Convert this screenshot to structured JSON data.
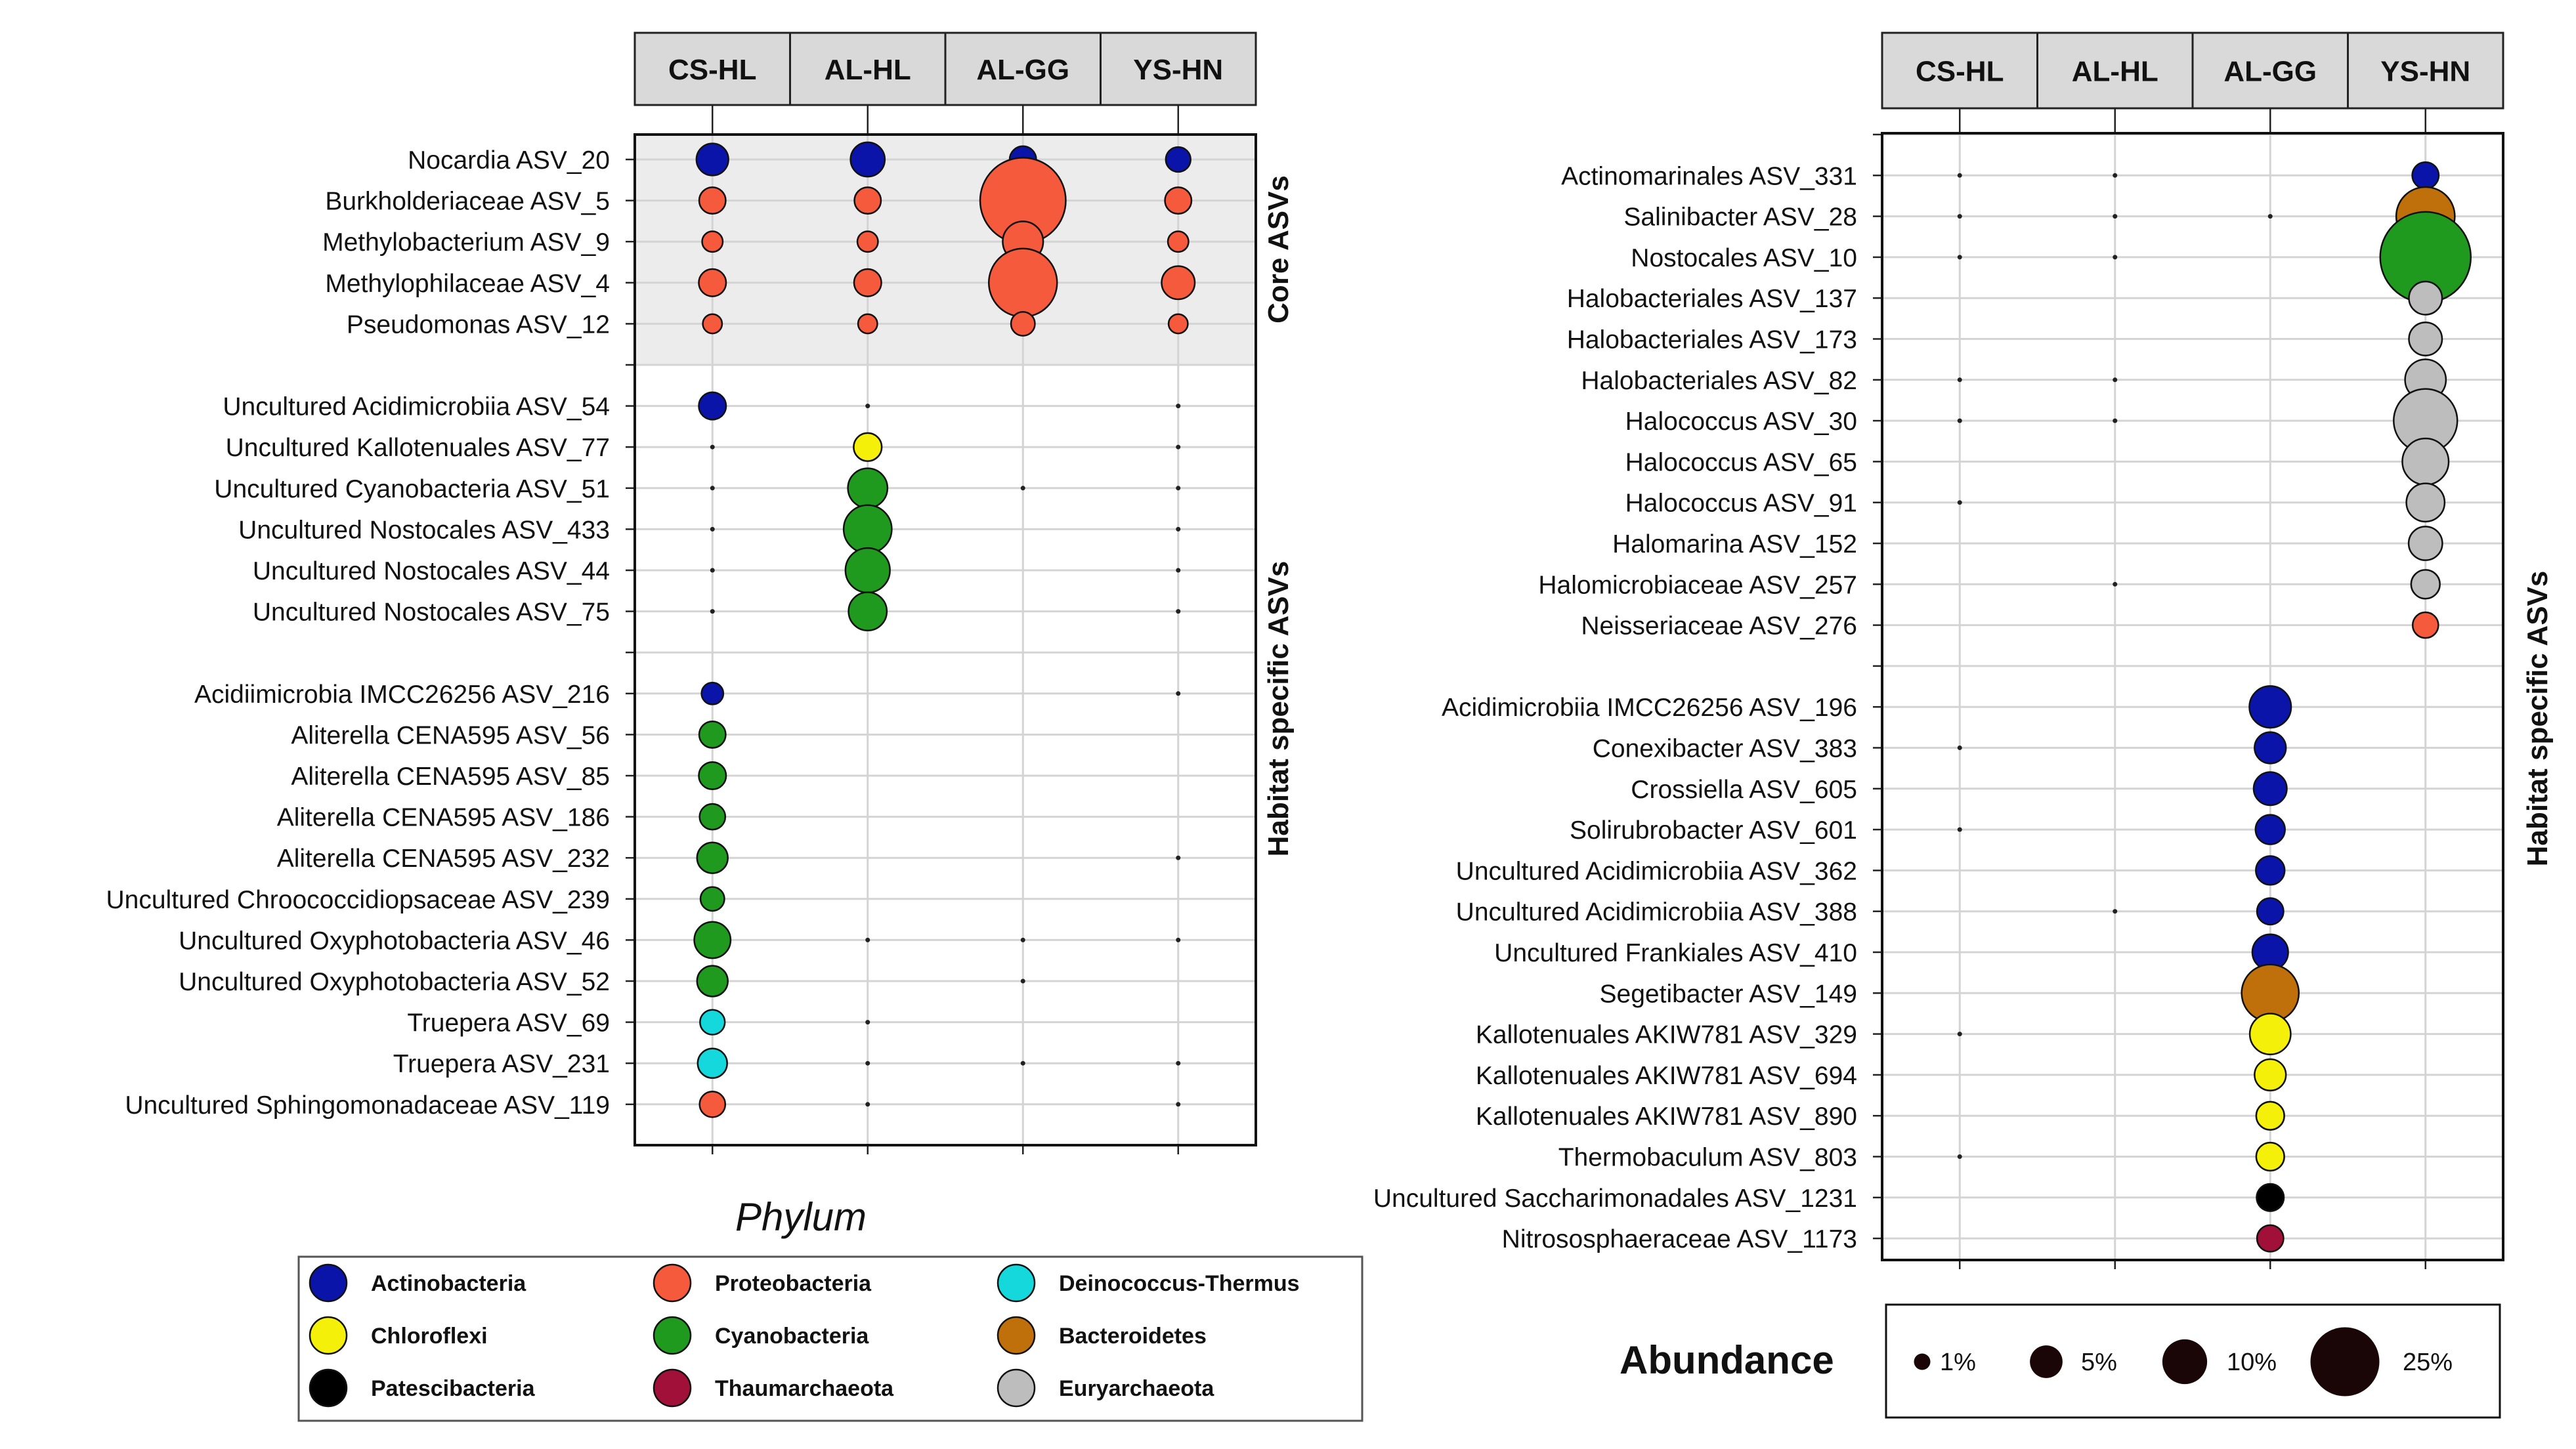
{
  "chart_data": [
    {
      "type": "scatter",
      "subtype": "bubble",
      "title": "",
      "columns": [
        "CS-HL",
        "AL-HL",
        "AL-GG",
        "YS-HN"
      ],
      "group_labels": [
        "Core ASVs",
        "Habitat specific ASVs"
      ],
      "rows": [
        {
          "label": "Nocardia ASV_20",
          "phylum": "Actinobacteria",
          "values": [
            1.8,
            2.2,
            1.0,
            0.8
          ],
          "group": "core"
        },
        {
          "label": "Burkholderiaceae ASV_5",
          "phylum": "Proteobacteria",
          "values": [
            1.0,
            1.0,
            22.0,
            1.0
          ],
          "group": "core"
        },
        {
          "label": "Methylobacterium ASV_9",
          "phylum": "Proteobacteria",
          "values": [
            0.4,
            0.4,
            3.5,
            0.4
          ],
          "group": "core"
        },
        {
          "label": "Methylophilaceae ASV_4",
          "phylum": "Proteobacteria",
          "values": [
            1.1,
            1.1,
            13.0,
            2.0
          ],
          "group": "core"
        },
        {
          "label": "Pseudomonas ASV_12",
          "phylum": "Proteobacteria",
          "values": [
            0.3,
            0.3,
            0.7,
            0.3
          ],
          "group": "core"
        },
        {
          "label": "",
          "phylum": null,
          "values": [
            0,
            0,
            0,
            0
          ],
          "group": "core"
        },
        {
          "label": "Uncultured Acidimicrobiia ASV_54",
          "phylum": "Actinobacteria",
          "values": [
            1.1,
            0.1,
            0,
            0.05
          ],
          "group": "habitat"
        },
        {
          "label": "Uncultured Kallotenuales ASV_77",
          "phylum": "Chloroflexi",
          "values": [
            0.05,
            1.2,
            0,
            0.05
          ],
          "group": "habitat"
        },
        {
          "label": "Uncultured Cyanobacteria ASV_51",
          "phylum": "Cyanobacteria",
          "values": [
            0.1,
            3.3,
            0.05,
            0.1
          ],
          "group": "habitat"
        },
        {
          "label": "Uncultured Nostocales ASV_433",
          "phylum": "Cyanobacteria",
          "values": [
            0.1,
            5.5,
            0,
            0.1
          ],
          "group": "habitat"
        },
        {
          "label": "Uncultured Nostocales ASV_44",
          "phylum": "Cyanobacteria",
          "values": [
            0.05,
            4.5,
            0,
            0.05
          ],
          "group": "habitat"
        },
        {
          "label": "Uncultured Nostocales ASV_75",
          "phylum": "Cyanobacteria",
          "values": [
            0.05,
            3.0,
            0,
            0.05
          ],
          "group": "habitat"
        },
        {
          "label": "",
          "phylum": null,
          "values": [
            0,
            0,
            0,
            0
          ],
          "group": "habitat"
        },
        {
          "label": "Acidiimicrobia IMCC26256 ASV_216",
          "phylum": "Actinobacteria",
          "values": [
            0.5,
            0,
            0,
            0.05
          ],
          "group": "habitat"
        },
        {
          "label": "Aliterella CENA595 ASV_56",
          "phylum": "Cyanobacteria",
          "values": [
            1.0,
            0,
            0,
            0
          ],
          "group": "habitat"
        },
        {
          "label": "Aliterella CENA595  ASV_85",
          "phylum": "Cyanobacteria",
          "values": [
            1.1,
            0,
            0,
            0
          ],
          "group": "habitat"
        },
        {
          "label": "Aliterella CENA595 ASV_186",
          "phylum": "Cyanobacteria",
          "values": [
            0.9,
            0,
            0,
            0
          ],
          "group": "habitat"
        },
        {
          "label": "Aliterella CENA595 ASV_232",
          "phylum": "Cyanobacteria",
          "values": [
            1.6,
            0,
            0,
            0.05
          ],
          "group": "habitat"
        },
        {
          "label": "Uncultured Chroococcidiopsaceae ASV_239",
          "phylum": "Cyanobacteria",
          "values": [
            0.7,
            0,
            0,
            0
          ],
          "group": "habitat"
        },
        {
          "label": "Uncultured Oxyphotobacteria ASV_46",
          "phylum": "Cyanobacteria",
          "values": [
            2.6,
            0.05,
            0.05,
            0.05
          ],
          "group": "habitat"
        },
        {
          "label": "Uncultured Oxyphotobacteria ASV_52",
          "phylum": "Cyanobacteria",
          "values": [
            1.6,
            0,
            0.05,
            0
          ],
          "group": "habitat"
        },
        {
          "label": "Truepera ASV_69",
          "phylum": "Deinococcus-Thermus",
          "values": [
            0.8,
            0.05,
            0,
            0
          ],
          "group": "habitat"
        },
        {
          "label": "Truepera ASV_231",
          "phylum": "Deinococcus-Thermus",
          "values": [
            1.4,
            0.1,
            0.1,
            0.05
          ],
          "group": "habitat"
        },
        {
          "label": "Uncultured Sphingomonadaceae ASV_119",
          "phylum": "Proteobacteria",
          "values": [
            0.9,
            0.1,
            0,
            0.05
          ],
          "group": "habitat"
        }
      ]
    },
    {
      "type": "scatter",
      "subtype": "bubble",
      "title": "",
      "columns": [
        "CS-HL",
        "AL-HL",
        "AL-GG",
        "YS-HN"
      ],
      "group_labels": [
        "Habitat specific ASVs"
      ],
      "rows": [
        {
          "label": "",
          "phylum": null,
          "values": [
            0,
            0,
            0,
            0
          ]
        },
        {
          "label": "Actinomarinales ASV_331",
          "phylum": "Actinobacteria",
          "values": [
            0.05,
            0.05,
            0,
            1.0
          ]
        },
        {
          "label": "Salinibacter ASV_28",
          "phylum": "Bacteroidetes",
          "values": [
            0.1,
            0.05,
            0.05,
            9.0
          ]
        },
        {
          "label": "Nostocales ASV_10",
          "phylum": "Cyanobacteria",
          "values": [
            0.1,
            0.1,
            0,
            25.0
          ]
        },
        {
          "label": "Halobacteriales ASV_137",
          "phylum": "Euryarchaeota",
          "values": [
            0,
            0,
            0,
            2.0
          ]
        },
        {
          "label": "Halobacteriales  ASV_173",
          "phylum": "Euryarchaeota",
          "values": [
            0,
            0,
            0,
            2.0
          ]
        },
        {
          "label": "Halobacteriales ASV_82",
          "phylum": "Euryarchaeota",
          "values": [
            0.05,
            0.05,
            0,
            3.6
          ]
        },
        {
          "label": "Halococcus ASV_30",
          "phylum": "Euryarchaeota",
          "values": [
            0.05,
            0.05,
            0,
            11.0
          ]
        },
        {
          "label": "Halococcus ASV_65",
          "phylum": "Euryarchaeota",
          "values": [
            0,
            0,
            0,
            5.0
          ]
        },
        {
          "label": "Halococcus  ASV_91",
          "phylum": "Euryarchaeota",
          "values": [
            0.05,
            0,
            0,
            3.0
          ]
        },
        {
          "label": "Halomarina ASV_152",
          "phylum": "Euryarchaeota",
          "values": [
            0,
            0,
            0,
            2.1
          ]
        },
        {
          "label": "Halomicrobiaceae ASV_257",
          "phylum": "Euryarchaeota",
          "values": [
            0,
            0.05,
            0,
            1.3
          ]
        },
        {
          "label": "Neisseriaceae ASV_276",
          "phylum": "Proteobacteria",
          "values": [
            0,
            0,
            0,
            0.9
          ]
        },
        {
          "label": "",
          "phylum": null,
          "values": [
            0,
            0,
            0,
            0
          ]
        },
        {
          "label": "Acidimicrobiia IMCC26256 ASV_196",
          "phylum": "Actinobacteria",
          "values": [
            0,
            0,
            3.8,
            0
          ]
        },
        {
          "label": "Conexibacter ASV_383",
          "phylum": "Actinobacteria",
          "values": [
            0.1,
            0,
            1.7,
            0
          ]
        },
        {
          "label": "Crossiella ASV_605",
          "phylum": "Actinobacteria",
          "values": [
            0,
            0,
            2.0,
            0
          ]
        },
        {
          "label": "Solirubrobacter ASV_601",
          "phylum": "Actinobacteria",
          "values": [
            0.05,
            0,
            1.4,
            0
          ]
        },
        {
          "label": "Uncultured Acidimicrobiia ASV_362",
          "phylum": "Actinobacteria",
          "values": [
            0,
            0,
            1.3,
            0
          ]
        },
        {
          "label": "Uncultured Acidimicrobiia ASV_388",
          "phylum": "Actinobacteria",
          "values": [
            0,
            0.05,
            1.0,
            0
          ]
        },
        {
          "label": "Uncultured Frankiales ASV_410",
          "phylum": "Actinobacteria",
          "values": [
            0,
            0,
            2.5,
            0
          ]
        },
        {
          "label": "Segetibacter ASV_149",
          "phylum": "Bacteroidetes",
          "values": [
            0,
            0,
            8.5,
            0
          ]
        },
        {
          "label": "Kallotenuales AKIW781 ASV_329",
          "phylum": "Chloroflexi",
          "values": [
            0.05,
            0,
            3.6,
            0
          ]
        },
        {
          "label": "Kallotenuales AKIW781 ASV_694",
          "phylum": "Chloroflexi",
          "values": [
            0,
            0,
            1.7,
            0
          ]
        },
        {
          "label": "Kallotenuales AKIW781 ASV_890",
          "phylum": "Chloroflexi",
          "values": [
            0,
            0,
            1.2,
            0
          ]
        },
        {
          "label": "Thermobaculum ASV_803",
          "phylum": "Chloroflexi",
          "values": [
            0.05,
            0,
            1.2,
            0
          ]
        },
        {
          "label": "Uncultured Saccharimonadales ASV_1231",
          "phylum": "Patescibacteria",
          "values": [
            0,
            0,
            1.1,
            0
          ]
        },
        {
          "label": "Nitrososphaeraceae ASV_1173",
          "phylum": "Thaumarchaeota",
          "values": [
            0,
            0,
            1.0,
            0
          ]
        }
      ]
    }
  ],
  "legend": {
    "title": "Phylum",
    "items": [
      {
        "name": "Actinobacteria",
        "color": "#0a14a8"
      },
      {
        "name": "Proteobacteria",
        "color": "#f55a3c"
      },
      {
        "name": "Deinococcus-Thermus",
        "color": "#15d8dc"
      },
      {
        "name": "Chloroflexi",
        "color": "#f5f00a"
      },
      {
        "name": "Cyanobacteria",
        "color": "#1f9a1f"
      },
      {
        "name": "Bacteroidetes",
        "color": "#c0700a"
      },
      {
        "name": "Patescibacteria",
        "color": "#000000"
      },
      {
        "name": "Thaumarchaeota",
        "color": "#a01038"
      },
      {
        "name": "Euryarchaeota",
        "color": "#bdbdbd"
      }
    ]
  },
  "abundance_legend": {
    "title": "Abundance",
    "items": [
      {
        "label": "1%",
        "value": 1
      },
      {
        "label": "5%",
        "value": 5
      },
      {
        "label": "10%",
        "value": 10
      },
      {
        "label": "25%",
        "value": 25
      }
    ]
  }
}
